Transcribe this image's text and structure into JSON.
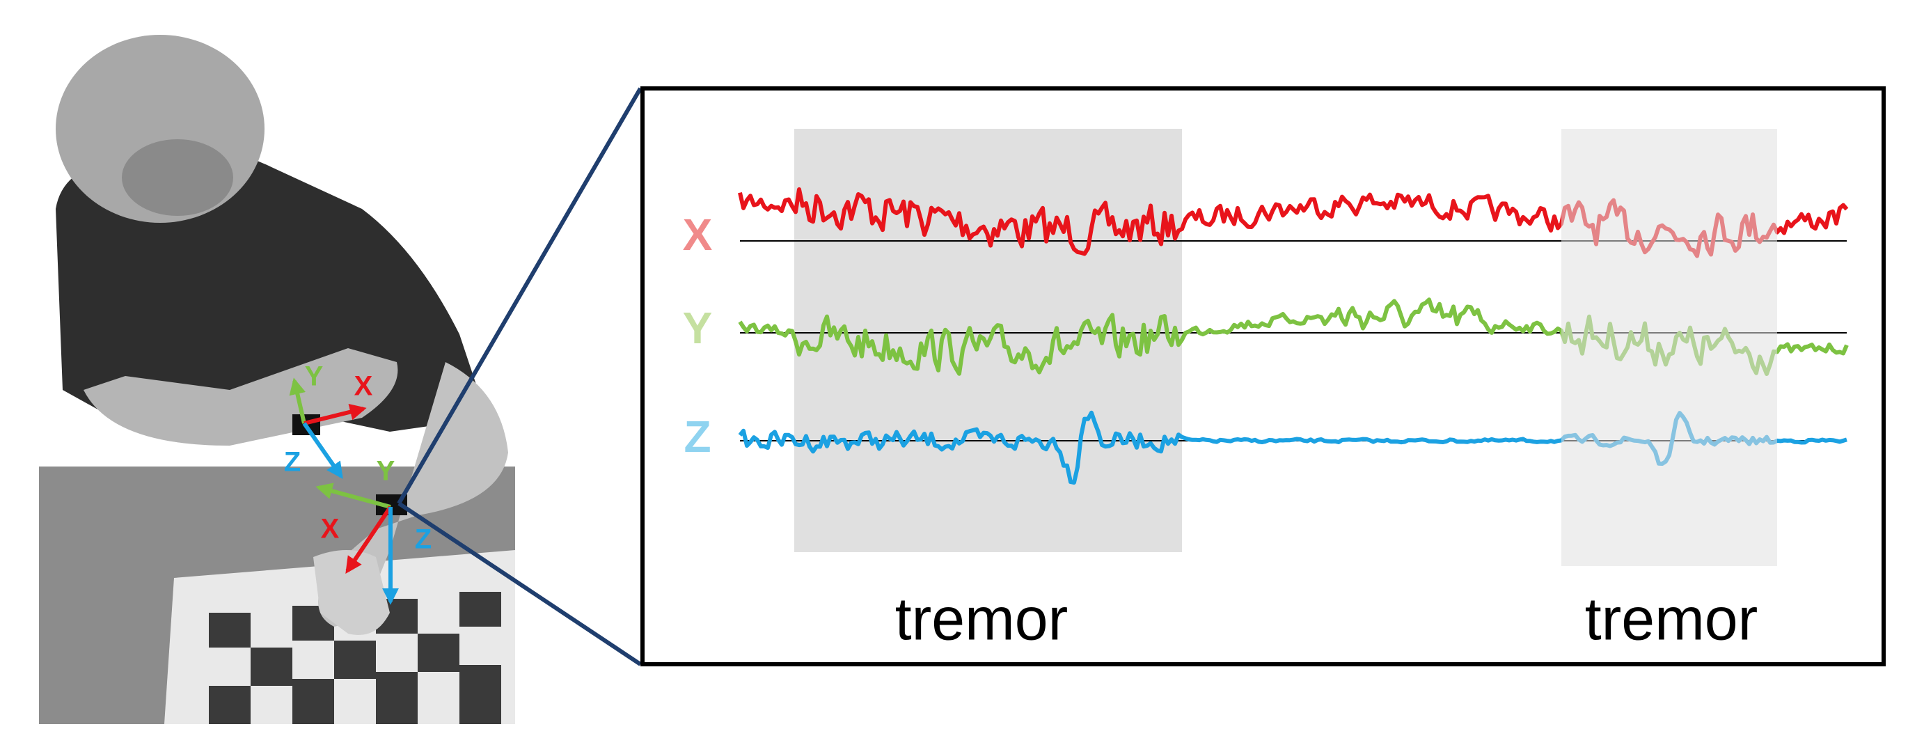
{
  "signal_panel": {
    "axis_labels": [
      "X",
      "Y",
      "Z"
    ],
    "annotations": [
      "tremor",
      "tremor"
    ]
  },
  "photo": {
    "upper_sensor_axes": {
      "x": "X",
      "y": "Y",
      "z": "Z"
    },
    "lower_sensor_axes": {
      "x": "X",
      "y": "Y",
      "z": "Z"
    }
  }
}
